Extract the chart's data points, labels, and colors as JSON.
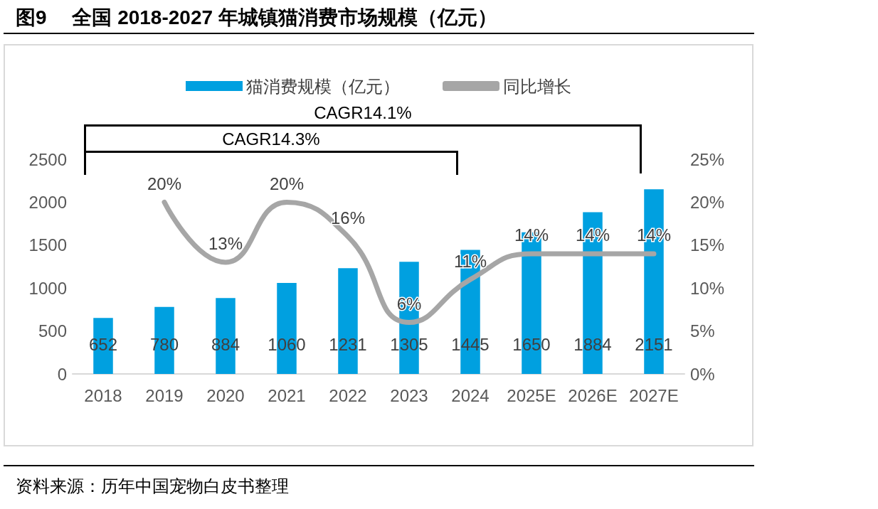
{
  "chart_data": {
    "type": "bar",
    "title": "图9　 全国 2018-2027 年城镇猫消费市场规模（亿元）",
    "categories": [
      "2018",
      "2019",
      "2020",
      "2021",
      "2022",
      "2023",
      "2024",
      "2025E",
      "2026E",
      "2027E"
    ],
    "series": [
      {
        "name": "猫消费规模（亿元）",
        "color": "#00a0e0",
        "values": [
          652,
          780,
          884,
          1060,
          1231,
          1305,
          1445,
          1650,
          1884,
          2151
        ],
        "value_labels": [
          "652",
          "780",
          "884",
          "1060",
          "1231",
          "1305",
          "1445",
          "1650",
          "1884",
          "2151"
        ]
      },
      {
        "name": "同比增长",
        "type": "line",
        "axis": "y2",
        "color": "#a6a6a6",
        "values": [
          null,
          20,
          13,
          20,
          16,
          6,
          11,
          14,
          14,
          14
        ],
        "value_labels": [
          null,
          "20%",
          "13%",
          "20%",
          "16%",
          "6%",
          "11%",
          "14%",
          "14%",
          "14%"
        ]
      }
    ],
    "ylim": [
      0,
      2500
    ],
    "yticks": [
      0,
      500,
      1000,
      1500,
      2000,
      2500
    ],
    "y2lim": [
      0,
      25
    ],
    "y2ticks": [
      {
        "value": 0,
        "label": "0%"
      },
      {
        "value": 5,
        "label": "5%"
      },
      {
        "value": 10,
        "label": "10%"
      },
      {
        "value": 15,
        "label": "15%"
      },
      {
        "value": 20,
        "label": "20%"
      },
      {
        "value": 25,
        "label": "25%"
      }
    ],
    "grid": false,
    "legend": "top",
    "line_style": "solid",
    "annotations": [
      "CAGR14.1%",
      "CAGR14.3%",
      "资料来源：历年中国宠物白皮书整理"
    ]
  }
}
